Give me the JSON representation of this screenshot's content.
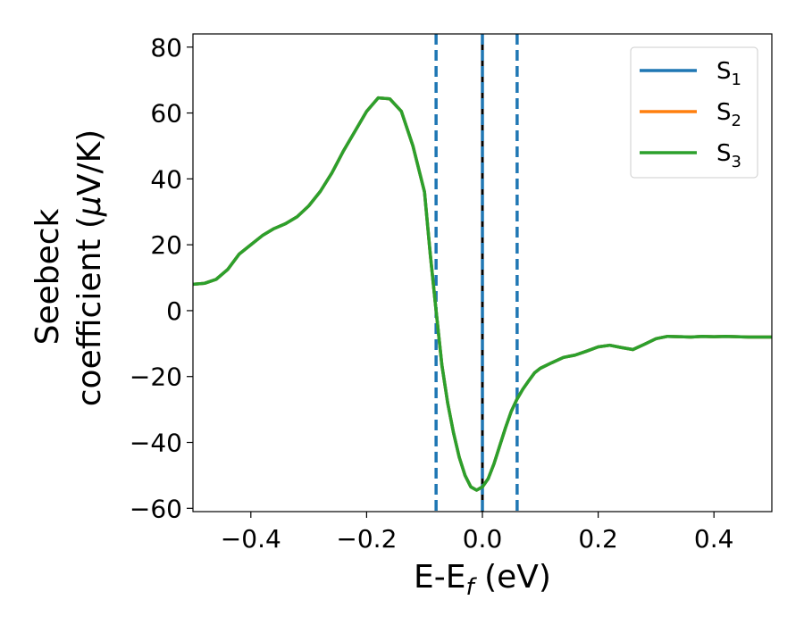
{
  "chart_data": {
    "type": "line",
    "xlabel": {
      "main": "E-E",
      "sub": "f",
      "unit": " (eV)"
    },
    "ylabel": {
      "line1": "Seebeck",
      "line2_prefix": "coefficient  (",
      "mu": "μ",
      "line2_suffix": "V/K)"
    },
    "xlim": [
      -0.5,
      0.5
    ],
    "ylim": [
      -61,
      84
    ],
    "xticks": [
      -0.4,
      -0.2,
      0.0,
      0.2,
      0.4
    ],
    "xtick_labels": [
      "−0.4",
      "−0.2",
      "0.0",
      "0.2",
      "0.4"
    ],
    "yticks": [
      -60,
      -40,
      -20,
      0,
      20,
      40,
      60,
      80
    ],
    "ytick_labels": [
      "−60",
      "−40",
      "−20",
      "0",
      "20",
      "40",
      "60",
      "80"
    ],
    "x": [
      -0.5,
      -0.48,
      -0.46,
      -0.44,
      -0.42,
      -0.4,
      -0.38,
      -0.36,
      -0.34,
      -0.32,
      -0.3,
      -0.28,
      -0.26,
      -0.24,
      -0.22,
      -0.2,
      -0.18,
      -0.16,
      -0.14,
      -0.12,
      -0.1,
      -0.09,
      -0.08,
      -0.07,
      -0.06,
      -0.05,
      -0.04,
      -0.03,
      -0.02,
      -0.01,
      0.0,
      0.01,
      0.02,
      0.03,
      0.04,
      0.05,
      0.06,
      0.07,
      0.08,
      0.09,
      0.1,
      0.12,
      0.14,
      0.16,
      0.18,
      0.2,
      0.22,
      0.24,
      0.26,
      0.28,
      0.3,
      0.32,
      0.34,
      0.36,
      0.38,
      0.4,
      0.42,
      0.44,
      0.46,
      0.48,
      0.5
    ],
    "series": [
      {
        "name_base": "S",
        "name_sub": "1",
        "color": "#1f77b4",
        "values": [
          8,
          8.3,
          9.5,
          12.5,
          17.2,
          20,
          22.8,
          24.9,
          26.4,
          28.5,
          31.8,
          36.2,
          41.8,
          48.5,
          54.5,
          60.5,
          64.6,
          64.3,
          60.5,
          50,
          36,
          17,
          0,
          -16.5,
          -28,
          -37,
          -44.5,
          -50,
          -53.5,
          -54.5,
          -53.5,
          -51,
          -46.5,
          -41,
          -35.5,
          -30.5,
          -26.8,
          -23.8,
          -21.3,
          -18.9,
          -17.5,
          -15.8,
          -14.2,
          -13.5,
          -12.3,
          -11,
          -10.5,
          -11.2,
          -11.8,
          -10.2,
          -8.5,
          -7.8,
          -7.9,
          -8,
          -7.8,
          -7.9,
          -7.8,
          -7.9,
          -8,
          -8,
          -8
        ]
      },
      {
        "name_base": "S",
        "name_sub": "2",
        "color": "#ff7f0e",
        "values": [
          8,
          8.3,
          9.5,
          12.5,
          17.2,
          20,
          22.8,
          24.9,
          26.4,
          28.5,
          31.8,
          36.2,
          41.8,
          48.5,
          54.5,
          60.5,
          64.6,
          64.3,
          60.5,
          50,
          36,
          17,
          0,
          -16.5,
          -28,
          -37,
          -44.5,
          -50,
          -53.5,
          -54.5,
          -53.5,
          -51,
          -46.5,
          -41,
          -35.5,
          -30.5,
          -26.8,
          -23.8,
          -21.3,
          -18.9,
          -17.5,
          -15.8,
          -14.2,
          -13.5,
          -12.3,
          -11,
          -10.5,
          -11.2,
          -11.8,
          -10.2,
          -8.5,
          -7.8,
          -7.9,
          -8,
          -7.8,
          -7.9,
          -7.8,
          -7.9,
          -8,
          -8,
          -8
        ]
      },
      {
        "name_base": "S",
        "name_sub": "3",
        "color": "#2ca02c",
        "values": [
          8,
          8.3,
          9.5,
          12.5,
          17.2,
          20,
          22.8,
          24.9,
          26.4,
          28.5,
          31.8,
          36.2,
          41.8,
          48.5,
          54.5,
          60.5,
          64.6,
          64.3,
          60.5,
          50,
          36,
          17,
          0,
          -16.5,
          -28,
          -37,
          -44.5,
          -50,
          -53.5,
          -54.5,
          -53.5,
          -51,
          -46.5,
          -41,
          -35.5,
          -30.5,
          -26.8,
          -23.8,
          -21.3,
          -18.9,
          -17.5,
          -15.8,
          -14.2,
          -13.5,
          -12.3,
          -11,
          -10.5,
          -11.2,
          -11.8,
          -10.2,
          -8.5,
          -7.8,
          -7.9,
          -8,
          -7.8,
          -7.9,
          -7.8,
          -7.9,
          -8,
          -8,
          -8
        ]
      }
    ],
    "vlines": [
      {
        "x": -0.08,
        "style": "dashed",
        "color": "#1f77b4"
      },
      {
        "x": 0.0,
        "style": "solid",
        "color": "#000000"
      },
      {
        "x": 0.0,
        "style": "dashed",
        "color": "#1f77b4"
      },
      {
        "x": 0.06,
        "style": "dashed",
        "color": "#1f77b4"
      }
    ],
    "legend_position": "top-right",
    "grid": false
  }
}
